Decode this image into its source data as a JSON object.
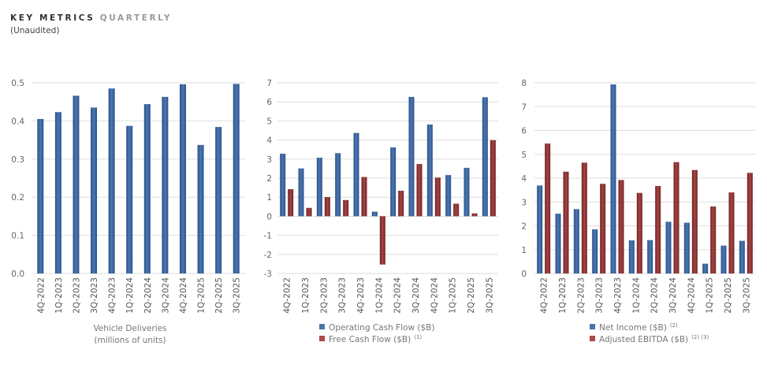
{
  "header": {
    "title_main": "KEY METRICS",
    "title_secondary": "QUARTERLY",
    "subtitle": "(Unaudited)"
  },
  "colors": {
    "blue": "#3d66a3",
    "red": "#8e3535",
    "blue_swatch": "#4a72b0",
    "red_swatch": "#b04848",
    "grid": "#dedede"
  },
  "chart_data": [
    {
      "type": "bar",
      "title": "",
      "caption_lines": [
        "Vehicle Deliveries",
        "(millions of units)"
      ],
      "xlabel": "",
      "ylabel": "",
      "categories": [
        "4Q-2022",
        "1Q-2023",
        "2Q-2023",
        "3Q-2023",
        "4Q-2023",
        "1Q-2024",
        "2Q-2024",
        "3Q-2024",
        "4Q-2024",
        "1Q-2025",
        "2Q-2025",
        "3Q-2025"
      ],
      "series": [
        {
          "name": "Vehicle Deliveries",
          "color_key": "blue",
          "values": [
            0.405,
            0.423,
            0.466,
            0.435,
            0.485,
            0.387,
            0.444,
            0.463,
            0.496,
            0.337,
            0.384,
            0.497
          ]
        }
      ],
      "ylim": [
        0,
        0.5
      ],
      "yticks": [
        "0.0",
        "0.1",
        "0.2",
        "0.3",
        "0.4",
        "0.5"
      ],
      "ytick_values": [
        0,
        0.1,
        0.2,
        0.3,
        0.4,
        0.5
      ],
      "grid": true,
      "legend": null
    },
    {
      "type": "bar",
      "title": "",
      "caption_lines": [],
      "xlabel": "",
      "ylabel": "",
      "categories": [
        "4Q-2022",
        "1Q-2023",
        "2Q-2023",
        "3Q-2023",
        "4Q-2023",
        "1Q-2024",
        "2Q-2024",
        "3Q-2024",
        "4Q-2024",
        "1Q-2025",
        "2Q-2025",
        "3Q-2025"
      ],
      "series": [
        {
          "name": "Operating Cash Flow ($B)",
          "sup": "",
          "color_key": "blue",
          "values": [
            3.28,
            2.51,
            3.07,
            3.31,
            4.37,
            0.24,
            3.61,
            6.26,
            4.81,
            2.16,
            2.54,
            6.24
          ]
        },
        {
          "name": "Free Cash Flow ($B)",
          "sup": "(1)",
          "color_key": "red",
          "values": [
            1.42,
            0.44,
            1.01,
            0.85,
            2.06,
            -2.53,
            1.34,
            2.74,
            2.03,
            0.66,
            0.15,
            3.99
          ]
        }
      ],
      "ylim": [
        -3,
        7
      ],
      "yticks": [
        "-3",
        "-2",
        "-1",
        "0",
        "1",
        "2",
        "3",
        "4",
        "5",
        "6",
        "7"
      ],
      "ytick_values": [
        -3,
        -2,
        -1,
        0,
        1,
        2,
        3,
        4,
        5,
        6,
        7
      ],
      "grid": true,
      "legend": "bottom"
    },
    {
      "type": "bar",
      "title": "",
      "caption_lines": [],
      "xlabel": "",
      "ylabel": "",
      "categories": [
        "4Q-2022",
        "1Q-2023",
        "2Q-2023",
        "3Q-2023",
        "4Q-2023",
        "1Q-2024",
        "2Q-2024",
        "3Q-2024",
        "4Q-2024",
        "1Q-2025",
        "2Q-2025",
        "3Q-2025"
      ],
      "series": [
        {
          "name": "Net Income ($B)",
          "sup": "(2)",
          "color_key": "blue",
          "values": [
            3.69,
            2.51,
            2.7,
            1.85,
            7.93,
            1.39,
            1.4,
            2.17,
            2.13,
            0.41,
            1.17,
            1.37
          ]
        },
        {
          "name": "Adjusted EBITDA ($B)",
          "sup": "(2) (3)",
          "color_key": "red",
          "values": [
            5.45,
            4.27,
            4.65,
            3.76,
            3.92,
            3.38,
            3.67,
            4.67,
            4.34,
            2.81,
            3.4,
            4.22
          ]
        }
      ],
      "ylim": [
        0,
        8
      ],
      "yticks": [
        "0",
        "1",
        "2",
        "3",
        "4",
        "5",
        "6",
        "7",
        "8"
      ],
      "ytick_values": [
        0,
        1,
        2,
        3,
        4,
        5,
        6,
        7,
        8
      ],
      "grid": true,
      "legend": "bottom"
    }
  ]
}
